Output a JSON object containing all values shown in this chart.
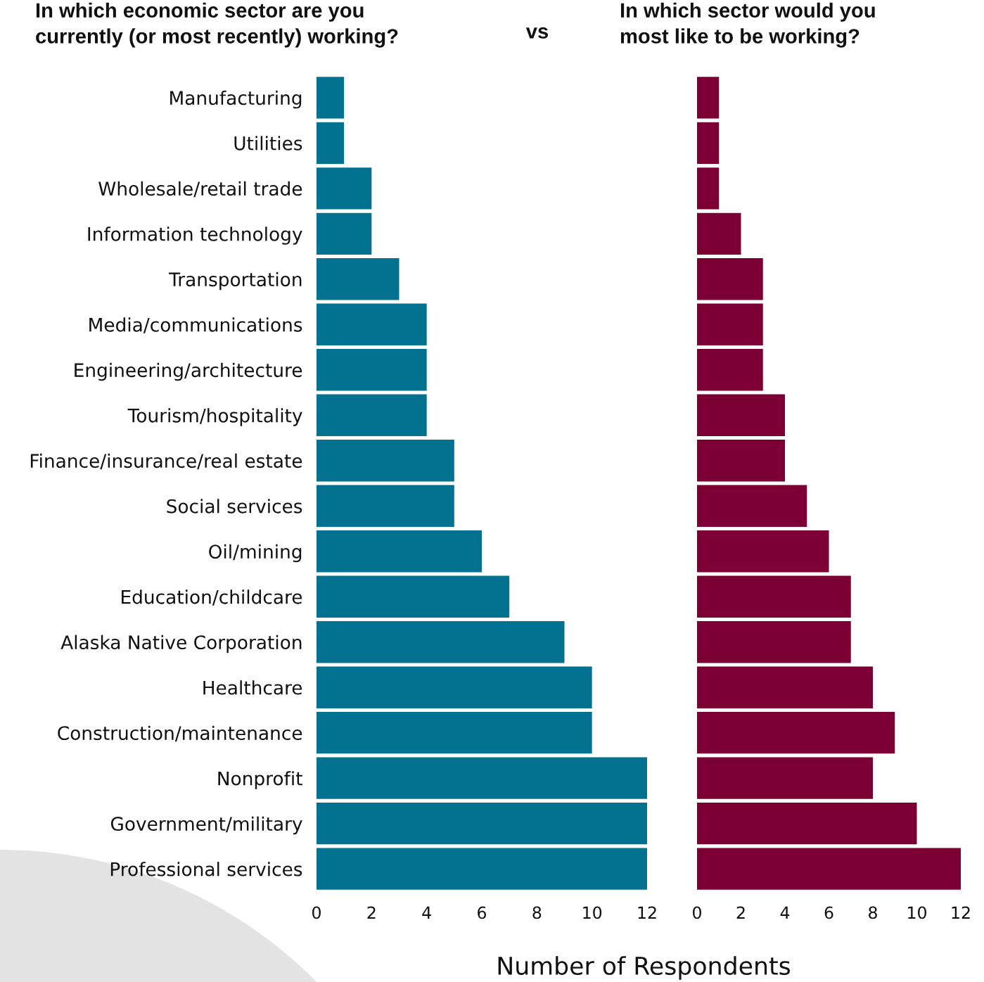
{
  "chart_data": [
    {
      "type": "bar",
      "orientation": "horizontal",
      "title": "In which economic sector are you\ncurrently (or most recently) working?",
      "xlabel": "Number of Respondents",
      "annotations": [
        "vs"
      ],
      "categories": [
        "Manufacturing",
        "Utilities",
        "Wholesale/retail trade",
        "Information technology",
        "Transportation",
        "Media/communications",
        "Engineering/architecture",
        "Tourism/hospitality",
        "Finance/insurance/real estate",
        "Social services",
        "Oil/mining",
        "Education/childcare",
        "Alaska Native Corporation",
        "Healthcare",
        "Construction/maintenance",
        "Nonprofit",
        "Government/military",
        "Professional services"
      ],
      "values": [
        1,
        1,
        2,
        2,
        3,
        4,
        4,
        4,
        5,
        5,
        6,
        7,
        9,
        10,
        10,
        12,
        12,
        12
      ],
      "color": "#037290",
      "xlim": [
        0,
        12
      ],
      "xticks": [
        0,
        2,
        4,
        6,
        8,
        10,
        12
      ],
      "grid": false,
      "legend": false
    },
    {
      "type": "bar",
      "orientation": "horizontal",
      "title": "In which sector would you\nmost like to be working?",
      "categories": [
        null,
        null,
        null,
        null,
        null,
        null,
        null,
        null,
        null,
        null,
        null,
        null,
        null,
        null,
        null,
        null,
        null,
        null
      ],
      "values": [
        1,
        1,
        1,
        2,
        3,
        3,
        3,
        4,
        4,
        5,
        6,
        7,
        7,
        8,
        9,
        8,
        10,
        12
      ],
      "color": "#7c0034",
      "xlim": [
        0,
        12
      ],
      "xticks": [
        0,
        2,
        4,
        6,
        8,
        10,
        12
      ],
      "tick_labels": "x",
      "grid": false,
      "legend": false
    }
  ]
}
